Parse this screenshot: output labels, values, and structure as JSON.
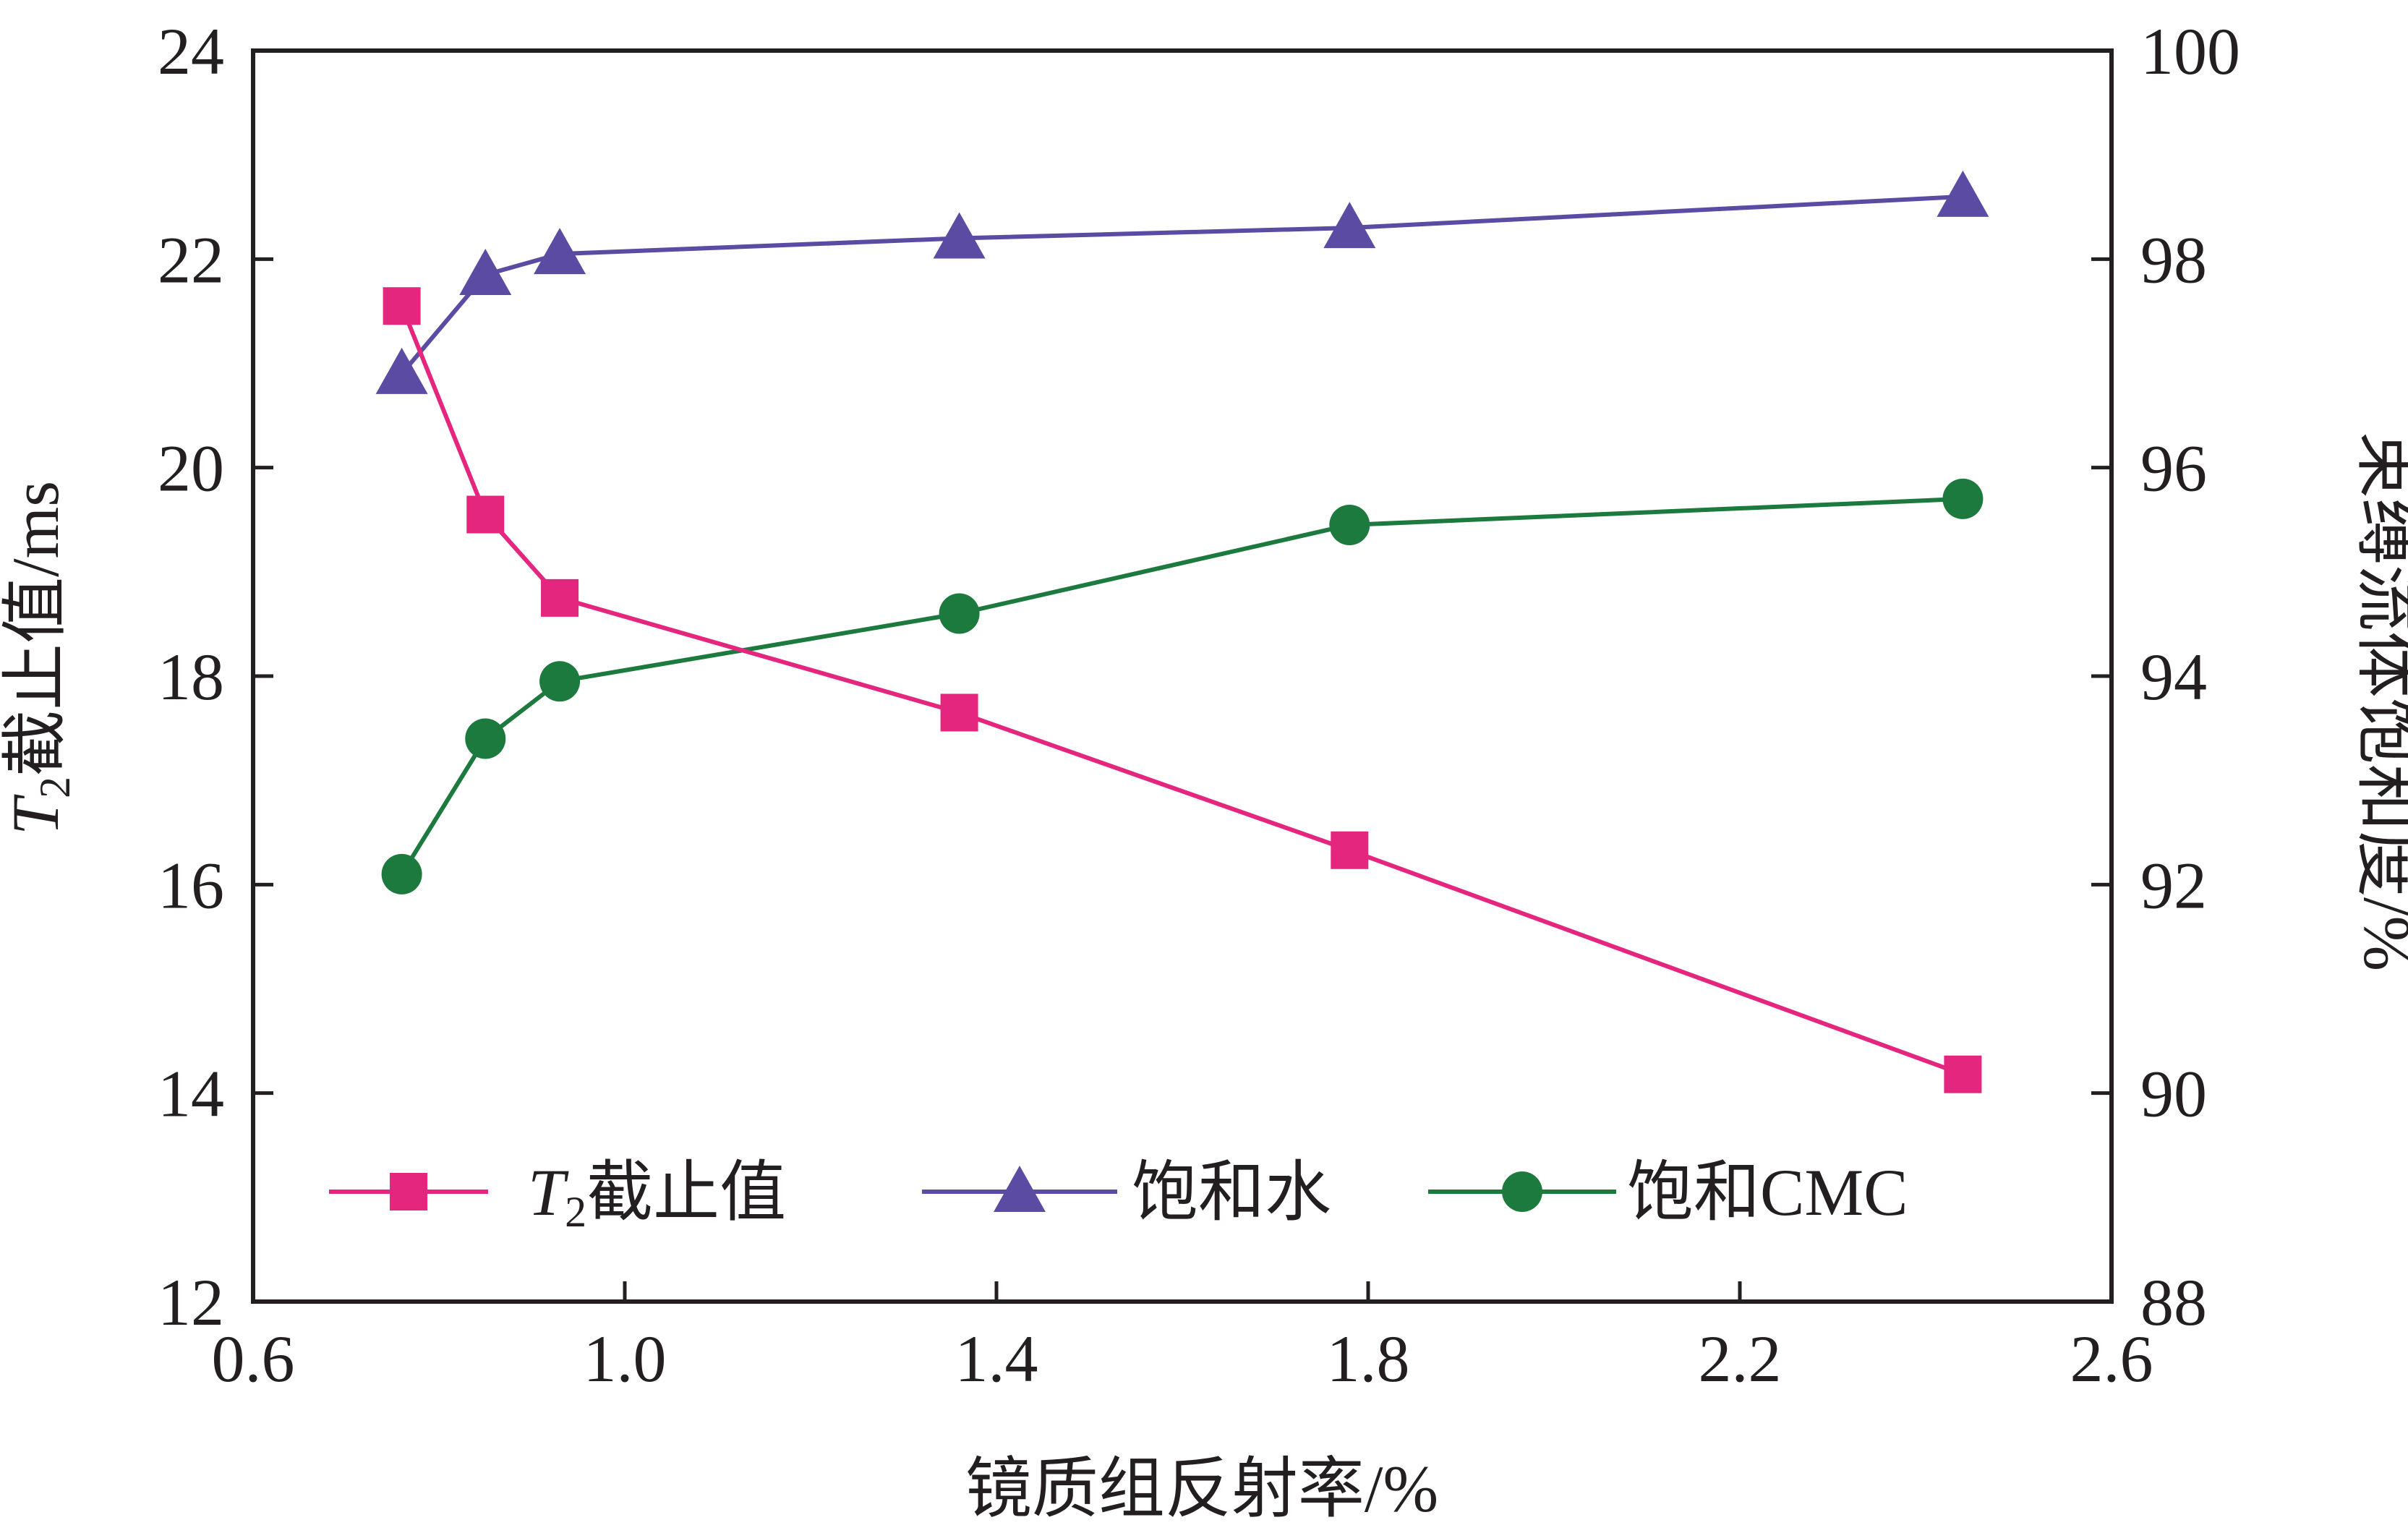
{
  "chart_data": {
    "type": "line",
    "xlabel": "镜质组反射率/%",
    "ylabel_left": {
      "italic": "T",
      "sub": "2",
      "rest": "截止值/ms"
    },
    "ylabel_right": "束缚流体饱和度/%",
    "xlim": [
      0.6,
      2.6
    ],
    "ylim_left": [
      12,
      24
    ],
    "ylim_right": [
      88,
      100
    ],
    "x_ticks": [
      "0.6",
      "1.0",
      "1.4",
      "1.8",
      "2.2",
      "2.6"
    ],
    "y_left_ticks": [
      "12",
      "14",
      "16",
      "18",
      "20",
      "22",
      "24"
    ],
    "y_right_ticks": [
      "88",
      "90",
      "92",
      "94",
      "96",
      "98",
      "100"
    ],
    "grid": false,
    "legend_position": "bottom",
    "series": [
      {
        "key": "t2",
        "name": "截止值",
        "name_prefix_italic": "T",
        "name_prefix_sub": "2",
        "axis": "left",
        "marker": "square",
        "color": "#e5267f",
        "points": [
          [
            0.76,
            21.55
          ],
          [
            0.85,
            19.55
          ],
          [
            0.93,
            18.75
          ],
          [
            1.36,
            17.65
          ],
          [
            1.78,
            16.33
          ],
          [
            2.44,
            14.18
          ]
        ]
      },
      {
        "key": "water",
        "name": "饱和水",
        "axis": "right",
        "marker": "triangle",
        "color": "#5b4ba3",
        "points": [
          [
            0.76,
            96.9
          ],
          [
            0.85,
            97.85
          ],
          [
            0.93,
            98.05
          ],
          [
            1.36,
            98.2
          ],
          [
            1.78,
            98.3
          ],
          [
            2.44,
            98.6
          ]
        ]
      },
      {
        "key": "cmc",
        "name": "饱和CMC",
        "axis": "right",
        "marker": "circle",
        "color": "#1d7a3e",
        "points": [
          [
            0.76,
            92.1
          ],
          [
            0.85,
            93.4
          ],
          [
            0.93,
            93.95
          ],
          [
            1.36,
            94.6
          ],
          [
            1.78,
            95.45
          ],
          [
            2.44,
            95.7
          ]
        ]
      }
    ]
  }
}
